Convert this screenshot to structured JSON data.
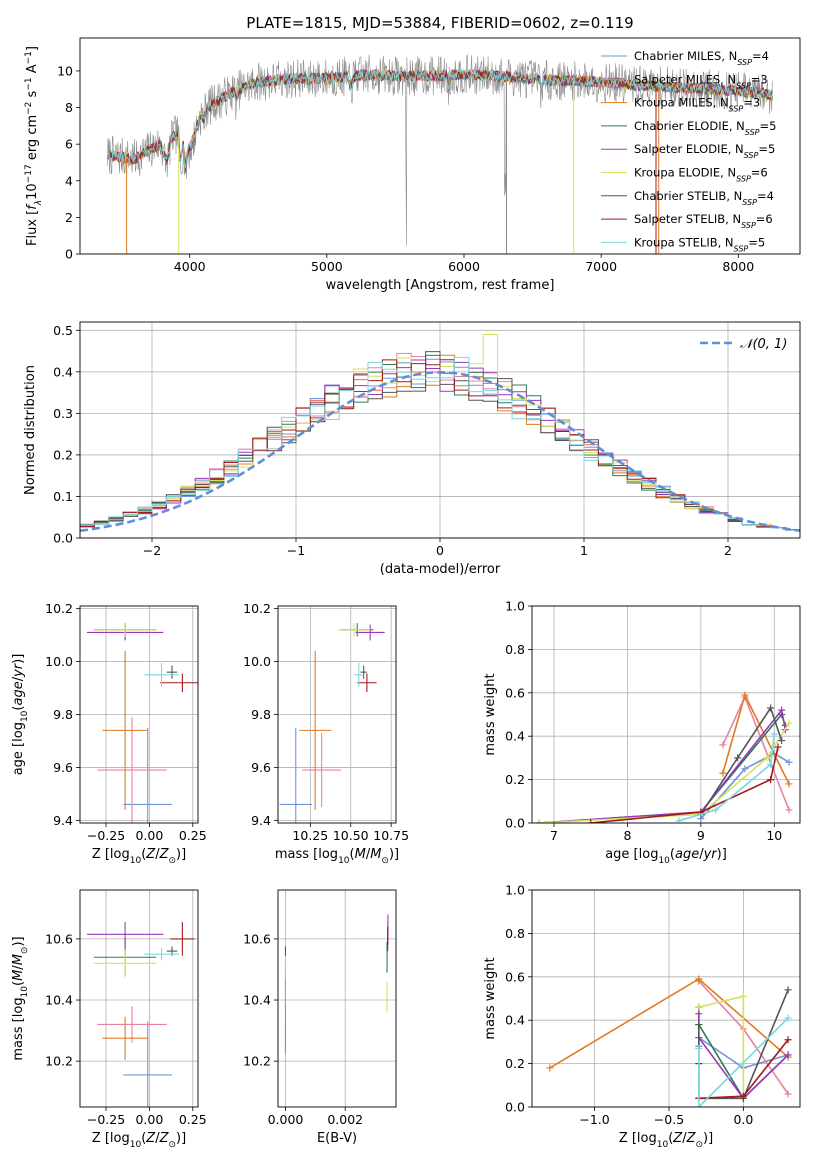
{
  "figure_title": "PLATE=1815, MJD=53884, FIBERID=0602, z=0.119",
  "colors": {
    "Chabrier MILES": "#6f94d9",
    "Salpeter MILES": "#e8829f",
    "Kroupa MILES": "#e07b1f",
    "Chabrier ELODIE": "#2f7a55",
    "Salpeter ELODIE": "#9a39b8",
    "Kroupa ELODIE": "#d9e05c",
    "Chabrier STELIB": "#555555",
    "Salpeter STELIB": "#a31a1a",
    "Kroupa STELIB": "#7fd6dc",
    "data_spectrum": "#8a8a8a",
    "normal_curve": "#5f8fd6"
  },
  "chart_data": [
    {
      "id": "spectrum",
      "type": "line",
      "xlabel": "wavelength [Angstrom, rest frame]",
      "ylabel": "Flux [fλ10^-17 erg cm^-2 s^-1 A^-1]",
      "xlim": [
        3200,
        8450
      ],
      "ylim": [
        0,
        11.8
      ],
      "xticks": [
        4000,
        5000,
        6000,
        7000,
        8000
      ],
      "yticks": [
        0,
        2,
        4,
        6,
        8,
        10
      ],
      "grid": false,
      "legend_position": "upper-right",
      "legend": [
        {
          "model": "Chabrier MILES",
          "label": "Chabrier MILES, N_SSP=4"
        },
        {
          "model": "Salpeter MILES",
          "label": "Salpeter MILES, N_SSP=3"
        },
        {
          "model": "Kroupa MILES",
          "label": "Kroupa MILES, N_SSP=3"
        },
        {
          "model": "Chabrier ELODIE",
          "label": "Chabrier ELODIE, N_SSP=5"
        },
        {
          "model": "Salpeter ELODIE",
          "label": "Salpeter ELODIE, N_SSP=5"
        },
        {
          "model": "Kroupa ELODIE",
          "label": "Kroupa ELODIE, N_SSP=6"
        },
        {
          "model": "Chabrier STELIB",
          "label": "Chabrier STELIB, N_SSP=4"
        },
        {
          "model": "Salpeter STELIB",
          "label": "Salpeter STELIB, N_SSP=6"
        },
        {
          "model": "Kroupa STELIB",
          "label": "Kroupa STELIB, N_SSP=5"
        }
      ],
      "continuum": {
        "x": [
          3400,
          3600,
          3800,
          3950,
          4100,
          4300,
          4500,
          4800,
          5000,
          5300,
          5600,
          6000,
          6300,
          6600,
          7000,
          7300,
          7600,
          8000,
          8250
        ],
        "y": [
          5.4,
          5.2,
          6.1,
          6.8,
          7.9,
          8.8,
          9.4,
          9.6,
          9.6,
          9.8,
          9.7,
          9.8,
          9.7,
          9.5,
          9.4,
          9.2,
          9.1,
          8.9,
          8.7
        ]
      }
    },
    {
      "id": "residuals",
      "type": "line",
      "xlabel": "(data-model)/error",
      "ylabel": "Normed distribution",
      "xlim": [
        -2.5,
        2.5
      ],
      "ylim": [
        0,
        0.52
      ],
      "xticks": [
        -2,
        -1,
        0,
        1,
        2
      ],
      "yticks": [
        0.0,
        0.1,
        0.2,
        0.3,
        0.4,
        0.5
      ],
      "grid": true,
      "legend_position": "upper-right",
      "legend_label": "N(0,1)",
      "gaussian": {
        "mean": 0,
        "sigma": 1
      }
    },
    {
      "id": "age_vs_Z",
      "type": "scatter",
      "xlabel": "Z [log10(Z/Z_sun)]",
      "ylabel": "age  [log10(age/yr)]",
      "xlim": [
        -0.4,
        0.28
      ],
      "ylim": [
        9.39,
        10.21
      ],
      "xticks": [
        -0.25,
        0.0,
        0.25
      ],
      "xticklabels": [
        "−0.25",
        "0.00",
        "0.25"
      ],
      "yticks": [
        9.4,
        9.6,
        9.8,
        10.0,
        10.2
      ],
      "grid": true,
      "points": [
        {
          "model": "Chabrier MILES",
          "x": -0.01,
          "y": 9.46,
          "xerr": 0.14,
          "yerr": 0.58
        },
        {
          "model": "Salpeter MILES",
          "x": -0.1,
          "y": 9.59,
          "xerr": 0.2,
          "yerr": 0.4
        },
        {
          "model": "Kroupa MILES",
          "x": -0.14,
          "y": 9.74,
          "xerr": 0.13,
          "yerr": 0.6
        },
        {
          "model": "Chabrier ELODIE",
          "x": -0.14,
          "y": 10.12,
          "xerr": 0.18,
          "yerr": 0.05
        },
        {
          "model": "Salpeter ELODIE",
          "x": -0.14,
          "y": 10.11,
          "xerr": 0.22,
          "yerr": 0.06
        },
        {
          "model": "Kroupa ELODIE",
          "x": -0.14,
          "y": 10.12,
          "xerr": 0.18,
          "yerr": 0.05
        },
        {
          "model": "Chabrier STELIB",
          "x": 0.13,
          "y": 9.96,
          "xerr": 0.03,
          "yerr": 0.05
        },
        {
          "model": "Salpeter STELIB",
          "x": 0.19,
          "y": 9.92,
          "xerr": 0.13,
          "yerr": 0.07
        },
        {
          "model": "Kroupa STELIB",
          "x": 0.07,
          "y": 9.95,
          "xerr": 0.1,
          "yerr": 0.09
        }
      ]
    },
    {
      "id": "age_vs_mass",
      "type": "scatter",
      "xlabel": "mass [log10(M/M_sun)]",
      "ylabel": "",
      "xlim": [
        10.05,
        10.78
      ],
      "ylim": [
        9.39,
        10.21
      ],
      "xticks": [
        10.25,
        10.5,
        10.75
      ],
      "xticklabels": [
        "10.25",
        "10.50",
        "10.75"
      ],
      "yticks": [
        9.4,
        9.6,
        9.8,
        10.0,
        10.2
      ],
      "grid": true,
      "points": [
        {
          "model": "Chabrier MILES",
          "x": 10.16,
          "y": 9.46,
          "xerr": 0.1,
          "yerr": 0.58
        },
        {
          "model": "Salpeter MILES",
          "x": 10.32,
          "y": 9.59,
          "xerr": 0.12,
          "yerr": 0.28
        },
        {
          "model": "Kroupa MILES",
          "x": 10.28,
          "y": 9.74,
          "xerr": 0.1,
          "yerr": 0.6
        },
        {
          "model": "Chabrier ELODIE",
          "x": 10.54,
          "y": 10.12,
          "xerr": 0.1,
          "yerr": 0.05
        },
        {
          "model": "Salpeter ELODIE",
          "x": 10.62,
          "y": 10.11,
          "xerr": 0.09,
          "yerr": 0.06
        },
        {
          "model": "Kroupa ELODIE",
          "x": 10.52,
          "y": 10.12,
          "xerr": 0.1,
          "yerr": 0.05
        },
        {
          "model": "Chabrier STELIB",
          "x": 10.58,
          "y": 9.96,
          "xerr": 0.02,
          "yerr": 0.05
        },
        {
          "model": "Salpeter STELIB",
          "x": 10.6,
          "y": 9.92,
          "xerr": 0.06,
          "yerr": 0.07
        },
        {
          "model": "Kroupa STELIB",
          "x": 10.55,
          "y": 9.95,
          "xerr": 0.03,
          "yerr": 0.09
        }
      ]
    },
    {
      "id": "weight_vs_age",
      "type": "line",
      "xlabel": "age  [log10(age/yr)]",
      "ylabel": "mass weight",
      "xlim": [
        6.7,
        10.35
      ],
      "ylim": [
        0,
        1.0
      ],
      "xticks": [
        7,
        8,
        9,
        10
      ],
      "yticks": [
        0.0,
        0.2,
        0.4,
        0.6,
        0.8,
        1.0
      ],
      "grid": true,
      "series": [
        {
          "model": "Chabrier MILES",
          "x": [
            9.0,
            9.6,
            10.0,
            10.2
          ],
          "y": [
            0.02,
            0.25,
            0.32,
            0.28
          ]
        },
        {
          "model": "Salpeter MILES",
          "x": [
            9.3,
            9.6,
            10.2
          ],
          "y": [
            0.36,
            0.58,
            0.06
          ]
        },
        {
          "model": "Kroupa MILES",
          "x": [
            9.3,
            9.6,
            10.2
          ],
          "y": [
            0.23,
            0.59,
            0.18
          ]
        },
        {
          "model": "Chabrier ELODIE",
          "x": [
            6.8,
            9.0,
            10.1,
            10.15
          ],
          "y": [
            0.0,
            0.05,
            0.5,
            0.45
          ]
        },
        {
          "model": "Salpeter ELODIE",
          "x": [
            6.8,
            9.0,
            10.1,
            10.15
          ],
          "y": [
            0.0,
            0.05,
            0.52,
            0.43
          ]
        },
        {
          "model": "Kroupa ELODIE",
          "x": [
            6.8,
            9.0,
            9.9,
            10.2
          ],
          "y": [
            0.0,
            0.04,
            0.3,
            0.46
          ]
        },
        {
          "model": "Chabrier STELIB",
          "x": [
            9.0,
            9.5,
            9.95,
            10.1
          ],
          "y": [
            0.04,
            0.3,
            0.53,
            0.38
          ]
        },
        {
          "model": "Salpeter STELIB",
          "x": [
            7.5,
            9.0,
            9.95,
            10.05
          ],
          "y": [
            0.0,
            0.05,
            0.2,
            0.35
          ]
        },
        {
          "model": "Kroupa STELIB",
          "x": [
            8.7,
            9.2,
            9.95,
            10.0
          ],
          "y": [
            0.01,
            0.06,
            0.27,
            0.41
          ]
        }
      ]
    },
    {
      "id": "mass_vs_Z",
      "type": "scatter",
      "xlabel": "Z [log10(Z/Z_sun)]",
      "ylabel": "mass [log10(M/M_sun)]",
      "xlim": [
        -0.4,
        0.28
      ],
      "ylim": [
        10.05,
        10.76
      ],
      "xticks": [
        -0.25,
        0.0,
        0.25
      ],
      "xticklabels": [
        "−0.25",
        "0.00",
        "0.25"
      ],
      "yticks": [
        10.2,
        10.4,
        10.6
      ],
      "grid": true,
      "points": [
        {
          "model": "Chabrier MILES",
          "x": -0.01,
          "y": 10.155,
          "xerr": 0.14,
          "yerr": 0.35
        },
        {
          "model": "Salpeter MILES",
          "x": -0.1,
          "y": 10.32,
          "xerr": 0.2,
          "yerr": 0.12
        },
        {
          "model": "Kroupa MILES",
          "x": -0.14,
          "y": 10.275,
          "xerr": 0.13,
          "yerr": 0.14
        },
        {
          "model": "Chabrier ELODIE",
          "x": -0.14,
          "y": 10.54,
          "xerr": 0.18,
          "yerr": 0.12
        },
        {
          "model": "Salpeter ELODIE",
          "x": -0.14,
          "y": 10.615,
          "xerr": 0.22,
          "yerr": 0.08
        },
        {
          "model": "Kroupa ELODIE",
          "x": -0.14,
          "y": 10.52,
          "xerr": 0.18,
          "yerr": 0.09
        },
        {
          "model": "Chabrier STELIB",
          "x": 0.13,
          "y": 10.56,
          "xerr": 0.03,
          "yerr": 0.03
        },
        {
          "model": "Salpeter STELIB",
          "x": 0.19,
          "y": 10.6,
          "xerr": 0.07,
          "yerr": 0.11
        },
        {
          "model": "Kroupa STELIB",
          "x": 0.07,
          "y": 10.55,
          "xerr": 0.1,
          "yerr": 0.04
        }
      ]
    },
    {
      "id": "mass_vs_EBV",
      "type": "scatter",
      "xlabel": "E(B-V)",
      "ylabel": "",
      "xlim": [
        -0.00025,
        0.0037
      ],
      "ylim": [
        10.05,
        10.76
      ],
      "xticks": [
        0.0,
        0.002
      ],
      "xticklabels": [
        "0.000",
        "0.002"
      ],
      "yticks": [
        10.2,
        10.4,
        10.6
      ],
      "grid": true,
      "points": [
        {
          "model": "Chabrier MILES",
          "x": 0.0,
          "y": 10.35,
          "xerr": 0,
          "yerr": 0.25
        },
        {
          "model": "Salpeter MILES",
          "x": 0.0,
          "y": 10.45,
          "xerr": 0,
          "yerr": 0.12
        },
        {
          "model": "Kroupa MILES",
          "x": 0.0,
          "y": 10.28,
          "xerr": 0,
          "yerr": 0.08
        },
        {
          "model": "Chabrier ELODIE",
          "x": 0.0034,
          "y": 10.54,
          "xerr": 0,
          "yerr": 0.1
        },
        {
          "model": "Salpeter ELODIE",
          "x": 0.00343,
          "y": 10.63,
          "xerr": 0,
          "yerr": 0.1
        },
        {
          "model": "Kroupa ELODIE",
          "x": 0.0034,
          "y": 10.41,
          "xerr": 0,
          "yerr": 0.1
        },
        {
          "model": "Chabrier STELIB",
          "x": 0.0,
          "y": 10.56,
          "xerr": 0,
          "yerr": 0.03
        },
        {
          "model": "Salpeter STELIB",
          "x": 0.00342,
          "y": 10.6,
          "xerr": 0,
          "yerr": 0.08
        },
        {
          "model": "Kroupa STELIB",
          "x": 0.0,
          "y": 10.5,
          "xerr": 0,
          "yerr": 0.06
        }
      ]
    },
    {
      "id": "weight_vs_Z",
      "type": "line",
      "xlabel": "Z [log10(Z/Z_sun)]",
      "ylabel": "mass weight",
      "xlim": [
        -1.42,
        0.38
      ],
      "ylim": [
        0,
        1.0
      ],
      "xticks": [
        -1.0,
        -0.5,
        0.0
      ],
      "xticklabels": [
        "−1.0",
        "−0.5",
        "0.0"
      ],
      "yticks": [
        0.0,
        0.2,
        0.4,
        0.6,
        0.8,
        1.0
      ],
      "grid": true,
      "series": [
        {
          "model": "Chabrier MILES",
          "x": [
            -0.3,
            -0.3,
            0.0,
            0.3
          ],
          "y": [
            0.28,
            0.32,
            0.18,
            0.24
          ]
        },
        {
          "model": "Salpeter MILES",
          "x": [
            -0.3,
            0.0,
            0.3
          ],
          "y": [
            0.58,
            0.36,
            0.06
          ]
        },
        {
          "model": "Kroupa MILES",
          "x": [
            -1.3,
            -0.3,
            0.3
          ],
          "y": [
            0.18,
            0.59,
            0.23
          ]
        },
        {
          "model": "Chabrier ELODIE",
          "x": [
            -0.3,
            -0.3,
            0.0,
            0.3
          ],
          "y": [
            0.46,
            0.38,
            0.04,
            0.24
          ]
        },
        {
          "model": "Salpeter ELODIE",
          "x": [
            -0.3,
            -0.3,
            0.0,
            0.3
          ],
          "y": [
            0.43,
            0.32,
            0.04,
            0.24
          ]
        },
        {
          "model": "Kroupa ELODIE",
          "x": [
            -0.3,
            0.0,
            0.0,
            -0.3
          ],
          "y": [
            0.46,
            0.51,
            0.04,
            0.04
          ]
        },
        {
          "model": "Chabrier STELIB",
          "x": [
            -0.3,
            -0.3,
            0.0,
            0.3
          ],
          "y": [
            0.38,
            0.04,
            0.04,
            0.54
          ]
        },
        {
          "model": "Salpeter STELIB",
          "x": [
            -0.3,
            -0.3,
            0.0,
            0.3
          ],
          "y": [
            0.2,
            0.04,
            0.05,
            0.31
          ]
        },
        {
          "model": "Kroupa STELIB",
          "x": [
            -0.3,
            -0.3,
            0.3
          ],
          "y": [
            0.27,
            0.0,
            0.41
          ]
        }
      ]
    }
  ]
}
